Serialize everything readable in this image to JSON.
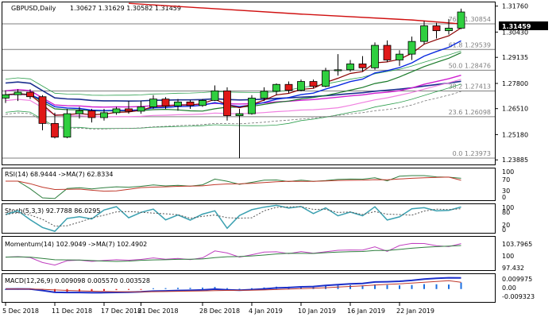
{
  "header": {
    "symbol": "GBPUSD,Daily",
    "ohlc": "1.30627 1.31629 1.30582 1.31459"
  },
  "indicators": {
    "rsi": {
      "label": "RSI(14) 68.9444 ->MA(7) 62.8334",
      "value": 68.9444,
      "ma": 62.8334,
      "levels": [
        "100",
        "70",
        "30",
        "0"
      ]
    },
    "stoch": {
      "label": "Stoch(5,3,3) 92.7788 86.0295",
      "k": 92.7788,
      "d": 86.0295,
      "levels": [
        "100",
        "80",
        "20",
        "0"
      ]
    },
    "momentum": {
      "label": "Momentum(14) 102.9049 ->MA(7) 102.4902",
      "value": 102.9049,
      "ma": 102.4902,
      "levels": [
        "103.7965",
        "100",
        "97.432"
      ]
    },
    "macd": {
      "label": "MACD(12,26,9) 0.009098 0.005570 0.003528",
      "macd": 0.009098,
      "signal": 0.00557,
      "histogram": 0.003528,
      "levels": [
        "0.009975",
        "0.00",
        "-0.009323"
      ]
    }
  },
  "chart_data": {
    "type": "candlestick",
    "title": "GBPUSD,Daily",
    "current_price": "1.31459",
    "y_ticks": [
      "1.31760",
      "1.30430",
      "1.29135",
      "1.27800",
      "1.26510",
      "1.25180",
      "1.23885"
    ],
    "ylim": [
      1.2365,
      1.3195
    ],
    "x_ticks": [
      "5 Dec 2018",
      "11 Dec 2018",
      "17 Dec 2018",
      "21 Dec 2018",
      "28 Dec 2018",
      "4 Jan 2019",
      "10 Jan 2019",
      "16 Jan 2019",
      "22 Jan 2019"
    ],
    "fibonacci": [
      {
        "label": "76.4 1.30854",
        "price": 1.30854
      },
      {
        "label": "61.8 1.29539",
        "price": 1.29539
      },
      {
        "label": "50.0 1.28476",
        "price": 1.28476
      },
      {
        "label": "38.2 1.27413",
        "price": 1.27413
      },
      {
        "label": "23.6 1.26098",
        "price": 1.26098
      },
      {
        "label": "0.0 1.23973",
        "price": 1.23973
      }
    ],
    "candles": [
      {
        "o": 1.2705,
        "h": 1.2745,
        "l": 1.268,
        "c": 1.2722
      },
      {
        "o": 1.2722,
        "h": 1.275,
        "l": 1.269,
        "c": 1.2735
      },
      {
        "o": 1.2735,
        "h": 1.275,
        "l": 1.27,
        "c": 1.2712
      },
      {
        "o": 1.2712,
        "h": 1.272,
        "l": 1.254,
        "c": 1.2575
      },
      {
        "o": 1.2575,
        "h": 1.263,
        "l": 1.2498,
        "c": 1.2505
      },
      {
        "o": 1.2505,
        "h": 1.265,
        "l": 1.25,
        "c": 1.2625
      },
      {
        "o": 1.2625,
        "h": 1.266,
        "l": 1.26,
        "c": 1.264
      },
      {
        "o": 1.264,
        "h": 1.265,
        "l": 1.258,
        "c": 1.2605
      },
      {
        "o": 1.2605,
        "h": 1.265,
        "l": 1.259,
        "c": 1.263
      },
      {
        "o": 1.263,
        "h": 1.266,
        "l": 1.262,
        "c": 1.265
      },
      {
        "o": 1.265,
        "h": 1.269,
        "l": 1.2625,
        "c": 1.2638
      },
      {
        "o": 1.2638,
        "h": 1.269,
        "l": 1.2625,
        "c": 1.266
      },
      {
        "o": 1.266,
        "h": 1.272,
        "l": 1.265,
        "c": 1.27
      },
      {
        "o": 1.27,
        "h": 1.271,
        "l": 1.265,
        "c": 1.2665
      },
      {
        "o": 1.2665,
        "h": 1.27,
        "l": 1.264,
        "c": 1.2685
      },
      {
        "o": 1.2685,
        "h": 1.2695,
        "l": 1.265,
        "c": 1.2667
      },
      {
        "o": 1.2667,
        "h": 1.27,
        "l": 1.266,
        "c": 1.2693
      },
      {
        "o": 1.2693,
        "h": 1.277,
        "l": 1.269,
        "c": 1.2742
      },
      {
        "o": 1.2742,
        "h": 1.276,
        "l": 1.259,
        "c": 1.2615
      },
      {
        "o": 1.2615,
        "h": 1.265,
        "l": 1.2397,
        "c": 1.2625
      },
      {
        "o": 1.2625,
        "h": 1.272,
        "l": 1.262,
        "c": 1.2705
      },
      {
        "o": 1.2705,
        "h": 1.276,
        "l": 1.269,
        "c": 1.274
      },
      {
        "o": 1.274,
        "h": 1.278,
        "l": 1.272,
        "c": 1.2775
      },
      {
        "o": 1.2775,
        "h": 1.279,
        "l": 1.273,
        "c": 1.2745
      },
      {
        "o": 1.2745,
        "h": 1.28,
        "l": 1.274,
        "c": 1.279
      },
      {
        "o": 1.279,
        "h": 1.28,
        "l": 1.2755,
        "c": 1.2765
      },
      {
        "o": 1.2765,
        "h": 1.286,
        "l": 1.276,
        "c": 1.2845
      },
      {
        "o": 1.2845,
        "h": 1.293,
        "l": 1.282,
        "c": 1.285
      },
      {
        "o": 1.285,
        "h": 1.29,
        "l": 1.284,
        "c": 1.288
      },
      {
        "o": 1.288,
        "h": 1.292,
        "l": 1.284,
        "c": 1.286
      },
      {
        "o": 1.286,
        "h": 1.299,
        "l": 1.285,
        "c": 1.2975
      },
      {
        "o": 1.2975,
        "h": 1.3,
        "l": 1.289,
        "c": 1.29
      },
      {
        "o": 1.29,
        "h": 1.295,
        "l": 1.287,
        "c": 1.293
      },
      {
        "o": 1.293,
        "h": 1.302,
        "l": 1.29,
        "c": 1.2995
      },
      {
        "o": 1.2995,
        "h": 1.31,
        "l": 1.298,
        "c": 1.3075
      },
      {
        "o": 1.3075,
        "h": 1.309,
        "l": 1.301,
        "c": 1.305
      },
      {
        "o": 1.305,
        "h": 1.311,
        "l": 1.303,
        "c": 1.3063
      },
      {
        "o": 1.3063,
        "h": 1.3163,
        "l": 1.3058,
        "c": 1.3146
      }
    ]
  }
}
